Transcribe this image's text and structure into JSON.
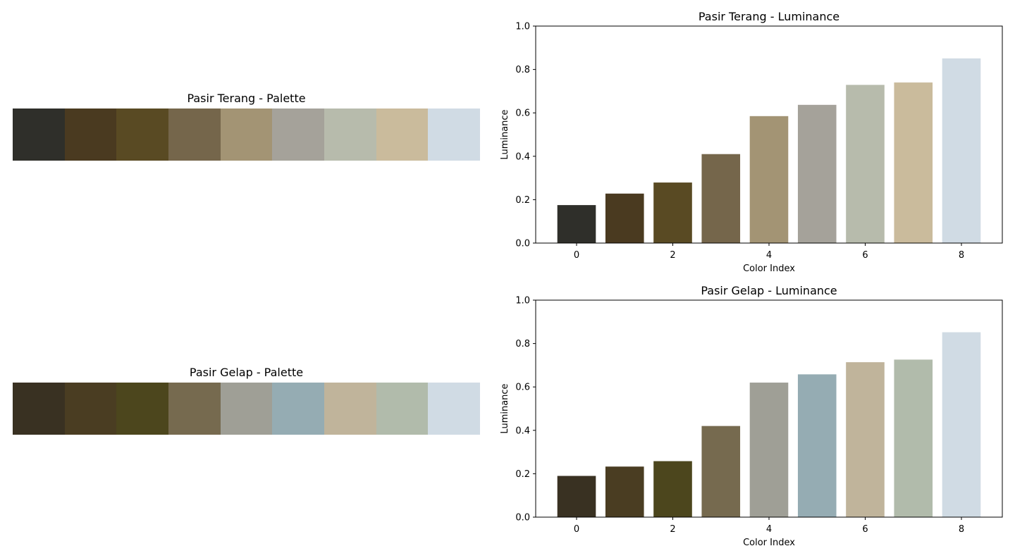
{
  "chart_data": [
    {
      "type": "palette",
      "title": "Pasir Terang - Palette",
      "colors": [
        "#2f2f2a",
        "#4a3a20",
        "#594a23",
        "#75664b",
        "#a39474",
        "#a5a29a",
        "#b7bbac",
        "#cabb9c",
        "#d0dbe4"
      ]
    },
    {
      "type": "bar",
      "title": "Pasir Terang - Luminance",
      "xlabel": "Color Index",
      "ylabel": "Luminance",
      "categories": [
        0,
        1,
        2,
        3,
        4,
        5,
        6,
        7,
        8
      ],
      "values": [
        0.175,
        0.228,
        0.279,
        0.41,
        0.585,
        0.637,
        0.729,
        0.74,
        0.851
      ],
      "colors": [
        "#2f2f2a",
        "#4a3a20",
        "#594a23",
        "#75664b",
        "#a39474",
        "#a5a29a",
        "#b7bbac",
        "#cabb9c",
        "#d0dbe4"
      ],
      "ylim": [
        0,
        1
      ],
      "xlim": [
        -0.85,
        8.85
      ],
      "xticks": [
        "0",
        "2",
        "4",
        "6",
        "8"
      ],
      "yticks": [
        "0.0",
        "0.2",
        "0.4",
        "0.6",
        "0.8",
        "1.0"
      ]
    },
    {
      "type": "palette",
      "title": "Pasir Gelap - Palette",
      "colors": [
        "#393122",
        "#4a3d22",
        "#4c461d",
        "#766a4f",
        "#9f9f96",
        "#95acb3",
        "#c0b49b",
        "#b1bbab",
        "#d0dbe4"
      ]
    },
    {
      "type": "bar",
      "title": "Pasir Gelap - Luminance",
      "xlabel": "Color Index",
      "ylabel": "Luminance",
      "categories": [
        0,
        1,
        2,
        3,
        4,
        5,
        6,
        7,
        8
      ],
      "values": [
        0.19,
        0.233,
        0.258,
        0.42,
        0.62,
        0.658,
        0.714,
        0.726,
        0.852
      ],
      "colors": [
        "#393122",
        "#4a3d22",
        "#4c461d",
        "#766a4f",
        "#9f9f96",
        "#95acb3",
        "#c0b49b",
        "#b1bbab",
        "#d0dbe4"
      ],
      "ylim": [
        0,
        1
      ],
      "xlim": [
        -0.85,
        8.85
      ],
      "xticks": [
        "0",
        "2",
        "4",
        "6",
        "8"
      ],
      "yticks": [
        "0.0",
        "0.2",
        "0.4",
        "0.6",
        "0.8",
        "1.0"
      ]
    }
  ]
}
